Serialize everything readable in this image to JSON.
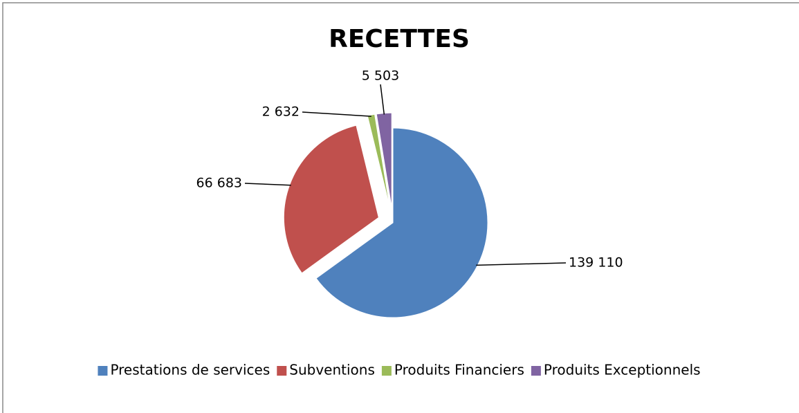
{
  "chart_data": {
    "type": "pie",
    "title": "RECETTES",
    "categories": [
      "Prestations de services",
      "Subventions",
      "Produits Financiers",
      "Produits Exceptionnels"
    ],
    "values": [
      139110,
      66683,
      2632,
      5503
    ],
    "value_labels": [
      "139 110",
      "66 683",
      "2 632",
      "5 503"
    ],
    "colors": [
      "#4f81bd",
      "#c0504d",
      "#9bbb59",
      "#8064a2"
    ],
    "legend": "bottom"
  }
}
